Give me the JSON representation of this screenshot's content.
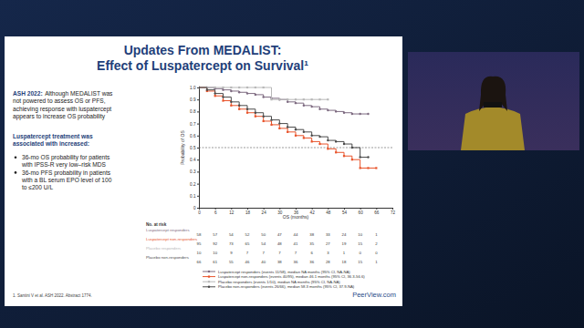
{
  "slide": {
    "title": [
      "Updates From MEDALIST:",
      "Effect of Luspatercept on Survival¹"
    ],
    "intro_label": "ASH 2022:",
    "intro_lines": [
      "Although MEDALIST was",
      "not powered to assess OS or PFS,",
      "achieving response with luspatercept",
      "appears to increase OS probability"
    ],
    "heading_lines": [
      "Luspatercept treatment was",
      "associated with increased:"
    ],
    "bullets": [
      [
        "36-mo OS probability for patients",
        "with IPSS-R very low–risk MDS"
      ],
      [
        "36-mo PFS probability in patients",
        "with a BL serum EPO level of 100",
        "to ≤200 U/L"
      ]
    ],
    "footnote": "1. Santini V et al. ASH 2022. Abstract 1774.",
    "brand": "PeerView.com"
  },
  "chart_data": {
    "type": "step",
    "x_label": "OS (months)",
    "y_label": "Probability of OS",
    "x": [
      0,
      3,
      6,
      9,
      12,
      15,
      18,
      21,
      24,
      27,
      30,
      33,
      36,
      39,
      42,
      45,
      48,
      51,
      54,
      57,
      60,
      63,
      66
    ],
    "series": [
      {
        "name": "Luspatercept responders (events 11/58), median NA months (95% CI, NA-NA)",
        "color": "#7d6a80",
        "marker": "circle",
        "values": [
          1.0,
          1.0,
          0.99,
          0.98,
          0.97,
          0.96,
          0.95,
          0.94,
          0.92,
          0.91,
          0.9,
          0.88,
          0.87,
          0.85,
          0.84,
          0.82,
          0.81,
          0.8,
          0.79,
          0.78,
          0.78,
          0.78,
          null
        ]
      },
      {
        "name": "Luspatercept non-responders (events 40/95), median 46.1 months (95% CI, 36.3-56.6)",
        "color": "#e8532a",
        "marker": "square",
        "values": [
          1.0,
          0.97,
          0.93,
          0.89,
          0.85,
          0.82,
          0.79,
          0.76,
          0.72,
          0.69,
          0.66,
          0.63,
          0.6,
          0.58,
          0.55,
          0.53,
          0.49,
          0.46,
          0.43,
          0.4,
          0.33,
          0.33,
          0.33
        ]
      },
      {
        "name": "Placebo responders (events 1/10), median NA months (95% CI, NA-NA)",
        "color": "#b8b8b8",
        "marker": "square",
        "values": [
          1.0,
          1.0,
          1.0,
          1.0,
          1.0,
          1.0,
          1.0,
          1.0,
          1.0,
          0.9,
          0.9,
          0.9,
          0.9,
          0.9,
          0.9,
          0.9,
          0.9,
          null,
          null,
          null,
          null,
          null,
          null
        ]
      },
      {
        "name": "Placebo non-responders (events 26/66), median 58.3 months (95% CI, 37.9-NA)",
        "color": "#4a4a4a",
        "marker": "circle",
        "values": [
          1.0,
          0.98,
          0.95,
          0.92,
          0.88,
          0.85,
          0.82,
          0.79,
          0.76,
          0.73,
          0.7,
          0.67,
          0.65,
          0.63,
          0.6,
          0.59,
          0.56,
          0.55,
          0.53,
          0.5,
          0.42,
          0.42,
          null
        ]
      }
    ],
    "xlim": [
      0,
      72
    ],
    "xticks": [
      0,
      6,
      12,
      18,
      24,
      30,
      36,
      42,
      48,
      54,
      60,
      66,
      72
    ],
    "ylim": [
      0,
      1
    ],
    "yticks": [
      0,
      0.1,
      0.2,
      0.3,
      0.4,
      0.5,
      0.6,
      0.7,
      0.8,
      0.9,
      {
        "value": 1,
        "label": "1.0"
      }
    ],
    "hline": 0.5,
    "grid": false,
    "at_risk": {
      "title": "No. at risk",
      "x": [
        0,
        6,
        12,
        18,
        24,
        30,
        36,
        42,
        48,
        54,
        60,
        66
      ],
      "rows": [
        {
          "name": "Luspatercept responders",
          "values": [
            58,
            57,
            54,
            52,
            50,
            47,
            44,
            38,
            33,
            24,
            10,
            1
          ]
        },
        {
          "name": "Luspatercept non-responders",
          "values": [
            95,
            92,
            73,
            65,
            54,
            48,
            41,
            35,
            27,
            19,
            15,
            2
          ]
        },
        {
          "name": "Placebo responders",
          "values": [
            10,
            10,
            9,
            7,
            7,
            7,
            7,
            6,
            3,
            1,
            0,
            0
          ]
        },
        {
          "name": "Placebo non-responders",
          "values": [
            66,
            61,
            55,
            46,
            40,
            38,
            36,
            36,
            28,
            18,
            15,
            1
          ]
        }
      ]
    }
  }
}
